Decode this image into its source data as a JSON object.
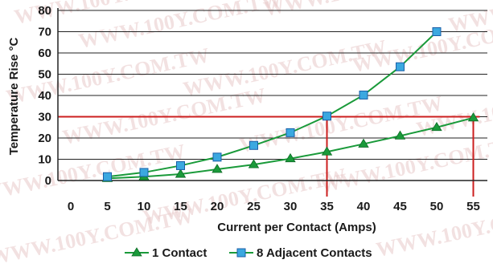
{
  "watermark_text": "WWW.100Y.COM.TW",
  "chart_data": {
    "type": "line",
    "xlabel": "Current per Contact (Amps)",
    "ylabel": "Temperature Rise °C",
    "xlim": [
      0,
      55
    ],
    "ylim": [
      0,
      80
    ],
    "x_ticks": [
      "0",
      "5",
      "10",
      "15",
      "20",
      "25",
      "30",
      "35",
      "40",
      "45",
      "50",
      "55"
    ],
    "y_ticks": [
      "0",
      "10",
      "20",
      "30",
      "40",
      "50",
      "60",
      "70",
      "80"
    ],
    "grid": "horizontal",
    "legend_position": "bottom",
    "series": [
      {
        "name": "1 Contact",
        "color": "#1a9a3a",
        "marker": "triangle",
        "marker_color": "#1a9a3a",
        "x": [
          5,
          10,
          15,
          20,
          25,
          30,
          35,
          40,
          45,
          50,
          55
        ],
        "y": [
          1,
          1.8,
          3,
          5.3,
          7.5,
          10.3,
          13.5,
          17.2,
          21,
          25,
          29.5
        ]
      },
      {
        "name": "8 Adjacent Contacts",
        "color": "#1a9a3a",
        "marker": "square",
        "marker_color": "#3ba8e0",
        "x": [
          5,
          10,
          15,
          20,
          25,
          30,
          35,
          40,
          45,
          50
        ],
        "y": [
          1.8,
          3.8,
          7,
          11,
          16.5,
          22.5,
          30.3,
          40.2,
          53.5,
          70
        ]
      }
    ],
    "reference_lines": {
      "color": "#cc1f1f",
      "horizontal_y": 30,
      "vertical_x": [
        35,
        55
      ]
    }
  }
}
